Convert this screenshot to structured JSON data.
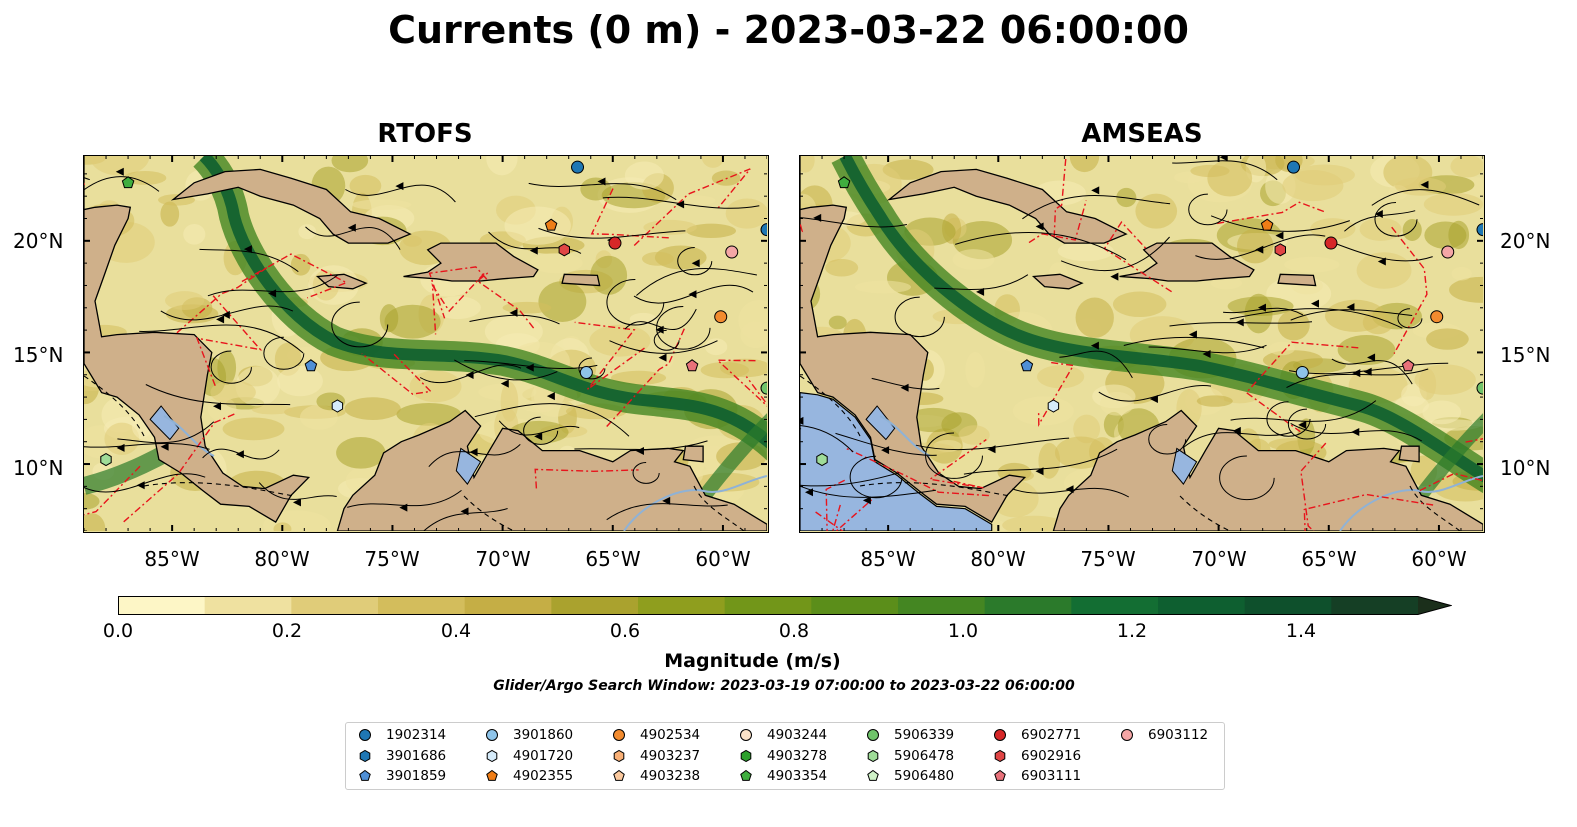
{
  "title": "Currents (0 m) - 2023-03-22 06:00:00",
  "panels": [
    {
      "title": "RTOFS"
    },
    {
      "title": "AMSEAS"
    }
  ],
  "axes": {
    "lat_labels": [
      "20°N",
      "15°N",
      "10°N"
    ],
    "lon_labels": [
      "85°W",
      "80°W",
      "75°W",
      "70°W",
      "65°W",
      "60°W"
    ]
  },
  "colorbar": {
    "label": "Magnitude (m/s)",
    "ticks": [
      "0.0",
      "0.2",
      "0.4",
      "0.6",
      "0.8",
      "1.0",
      "1.2",
      "1.4"
    ],
    "range": [
      0.0,
      1.5
    ],
    "extend": "max",
    "colors": [
      "#fdf6c6",
      "#efe1a0",
      "#e0cc79",
      "#d3bd5c",
      "#c5ae45",
      "#aaa22e",
      "#8f9e1e",
      "#729619",
      "#5b8e1a",
      "#448622",
      "#2b7a2b",
      "#136e33",
      "#0e5f30",
      "#0e502c",
      "#153f25",
      "#1b2f1b"
    ]
  },
  "search_window": "Glider/Argo Search Window: 2023-03-19 07:00:00 to 2023-03-22 06:00:00",
  "legend": [
    {
      "id": "1902314",
      "marker": "circle",
      "color": "#1f77b4"
    },
    {
      "id": "3901686",
      "marker": "hexagon",
      "color": "#1f77b4"
    },
    {
      "id": "3901859",
      "marker": "pentagon",
      "color": "#4f8fd6"
    },
    {
      "id": "3901860",
      "marker": "circle",
      "color": "#8ec4ea"
    },
    {
      "id": "4901720",
      "marker": "hexagon",
      "color": "#d5ebfa"
    },
    {
      "id": "4902355",
      "marker": "pentagon",
      "color": "#ef7d16"
    },
    {
      "id": "4902534",
      "marker": "circle",
      "color": "#f28b2f"
    },
    {
      "id": "4903237",
      "marker": "hexagon",
      "color": "#f9b076"
    },
    {
      "id": "4903238",
      "marker": "pentagon",
      "color": "#fbc99e"
    },
    {
      "id": "4903244",
      "marker": "circle",
      "color": "#fbe2c8"
    },
    {
      "id": "4903278",
      "marker": "hexagon",
      "color": "#2ca02c"
    },
    {
      "id": "4903354",
      "marker": "pentagon",
      "color": "#3fae3f"
    },
    {
      "id": "5906339",
      "marker": "circle",
      "color": "#70c46b"
    },
    {
      "id": "5906478",
      "marker": "hexagon",
      "color": "#9fdc98"
    },
    {
      "id": "5906480",
      "marker": "pentagon",
      "color": "#d0f2c8"
    },
    {
      "id": "6902771",
      "marker": "circle",
      "color": "#d62728"
    },
    {
      "id": "6902916",
      "marker": "hexagon",
      "color": "#e04545"
    },
    {
      "id": "6903111",
      "marker": "pentagon",
      "color": "#e8717a"
    },
    {
      "id": "6903112",
      "marker": "circle",
      "color": "#f4a6a6"
    }
  ],
  "floats": [
    {
      "id": "1902314",
      "lon": -66.6,
      "lat": 23.3
    },
    {
      "id": "1902314",
      "lon": -58.0,
      "lat": 20.5
    },
    {
      "id": "3901860",
      "lon": -66.2,
      "lat": 14.1
    },
    {
      "id": "3901859",
      "lon": -78.7,
      "lat": 14.4
    },
    {
      "id": "4901720",
      "lon": -77.5,
      "lat": 12.6
    },
    {
      "id": "4902355",
      "lon": -67.8,
      "lat": 20.7
    },
    {
      "id": "4902534",
      "lon": -60.1,
      "lat": 16.6
    },
    {
      "id": "6902771",
      "lon": -64.9,
      "lat": 19.9
    },
    {
      "id": "6902916",
      "lon": -67.2,
      "lat": 19.6
    },
    {
      "id": "6903111",
      "lon": -61.4,
      "lat": 14.4
    },
    {
      "id": "6903112",
      "lon": -59.6,
      "lat": 19.5
    },
    {
      "id": "4903354",
      "lon": -87.0,
      "lat": 22.6
    },
    {
      "id": "5906339",
      "lon": -58.0,
      "lat": 13.4
    },
    {
      "id": "5906478",
      "lon": -88.0,
      "lat": 10.2
    }
  ],
  "map_extent": {
    "lon": [
      -89,
      -58
    ],
    "lat": [
      7,
      23.8
    ]
  },
  "land_color": "#cfb08a",
  "ocean_color": "#e9df9c",
  "pacific_color": "#97b6df"
}
